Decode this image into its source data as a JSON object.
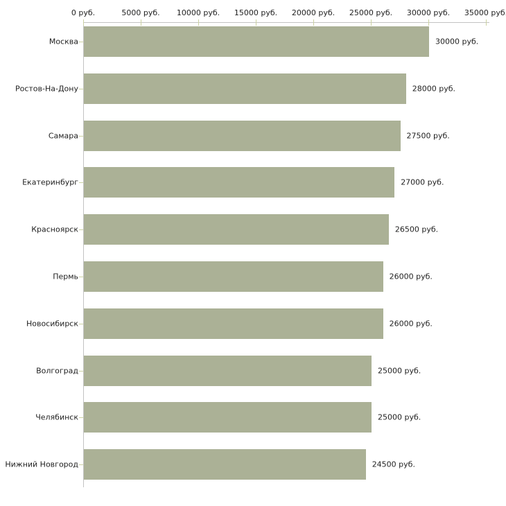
{
  "chart_data": {
    "type": "bar",
    "orientation": "horizontal",
    "title": "",
    "xlabel": "",
    "ylabel": "",
    "unit": "руб.",
    "grid": false,
    "legend": false,
    "categories": [
      "Москва",
      "Ростов-На-Дону",
      "Самара",
      "Екатеринбург",
      "Красноярск",
      "Пермь",
      "Новосибирск",
      "Волгоград",
      "Челябинск",
      "Нижний Новгород"
    ],
    "values": [
      30000,
      28000,
      27500,
      27000,
      26500,
      26000,
      26000,
      25000,
      25000,
      24500
    ],
    "value_labels": [
      "30000 руб.",
      "28000 руб.",
      "27500 руб.",
      "27000 руб.",
      "26500 руб.",
      "26000 руб.",
      "26000 руб.",
      "25000 руб.",
      "25000 руб.",
      "24500 руб."
    ],
    "xlim": [
      0,
      35000
    ],
    "x_ticks": [
      {
        "value": 0,
        "label": "0 руб."
      },
      {
        "value": 5000,
        "label": "5000 руб."
      },
      {
        "value": 10000,
        "label": "10000 руб."
      },
      {
        "value": 15000,
        "label": "15000 руб."
      },
      {
        "value": 20000,
        "label": "20000 руб."
      },
      {
        "value": 25000,
        "label": "25000 руб."
      },
      {
        "value": 30000,
        "label": "30000 руб."
      },
      {
        "value": 35000,
        "label": "35000 руб."
      }
    ],
    "colors": {
      "bar": "#abb196",
      "axis_line": "#c3c3c3",
      "tick_mark": "#ccd2a2",
      "text": "#1f1f1f",
      "background": "#ffffff"
    }
  }
}
